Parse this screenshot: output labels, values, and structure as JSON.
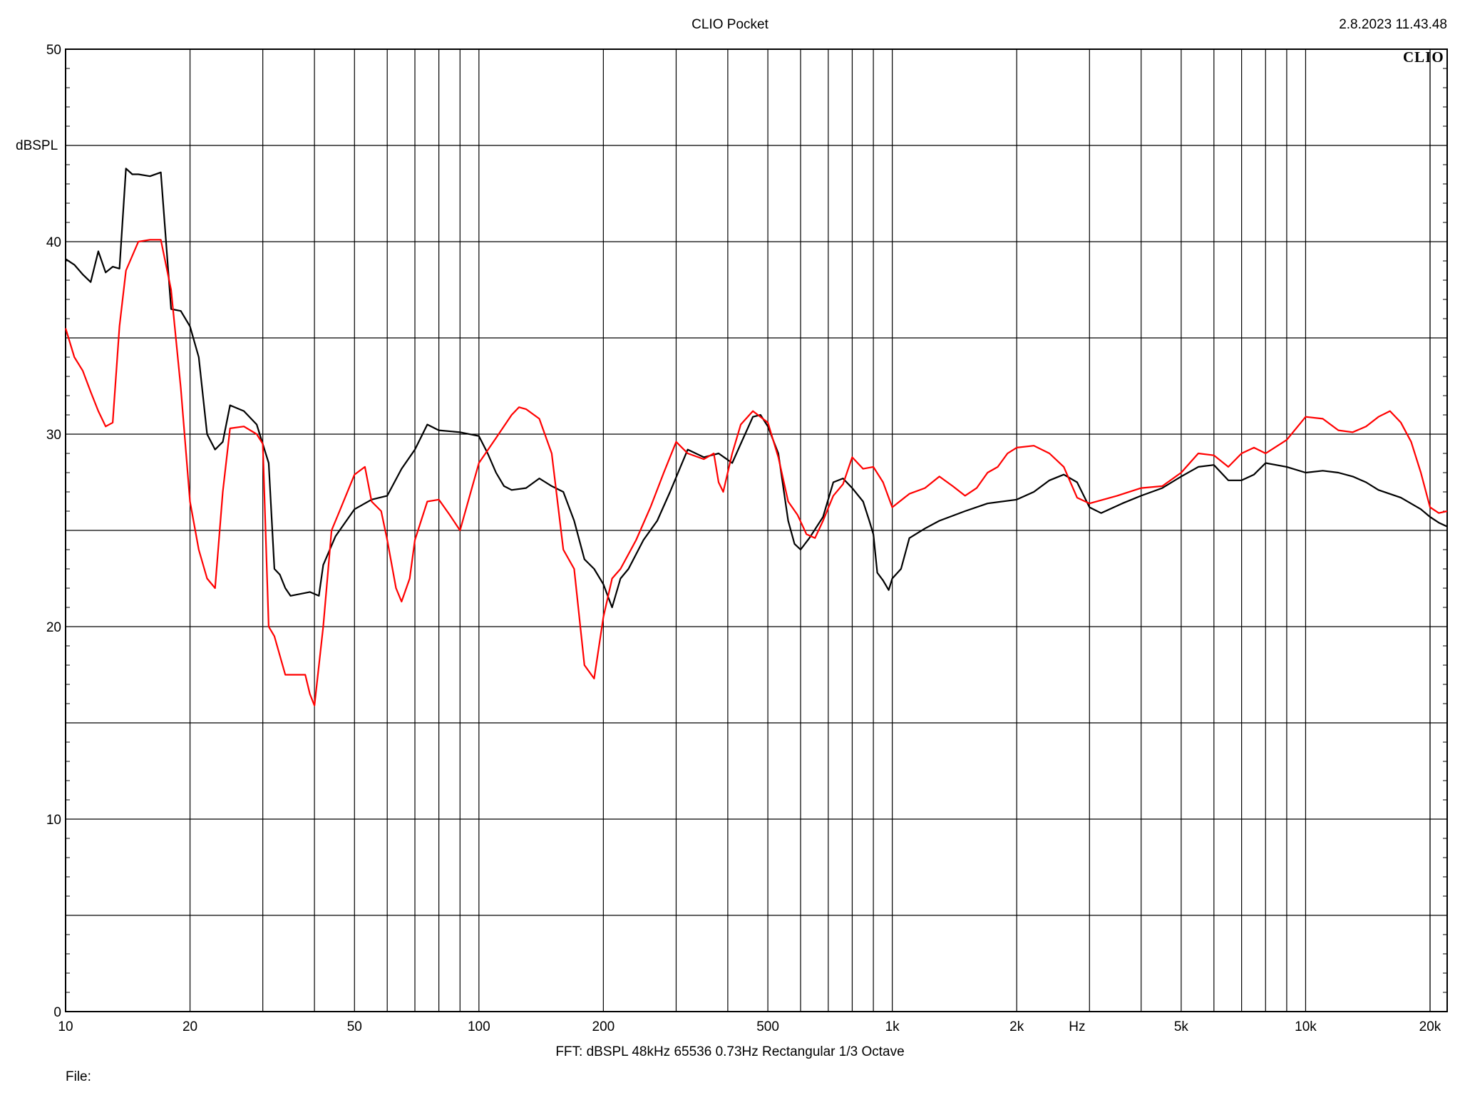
{
  "header": {
    "title": "CLIO Pocket",
    "timestamp": "2.8.2023 11.43.48",
    "logo": "CLIO"
  },
  "footer": {
    "info": "FFT:  dBSPL  48kHz   65536  0.73Hz  Rectangular  1/3 Octave",
    "file_label": "File:"
  },
  "chart_data": {
    "type": "line",
    "title": "CLIO Pocket",
    "xlabel": "Hz",
    "ylabel": "dBSPL",
    "x_scale": "log",
    "xlim": [
      10,
      22000
    ],
    "ylim": [
      0,
      50
    ],
    "grid": true,
    "y_ticks": [
      0,
      10,
      20,
      30,
      40,
      50
    ],
    "x_ticks": [
      {
        "value": 10,
        "label": "10"
      },
      {
        "value": 20,
        "label": "20"
      },
      {
        "value": 50,
        "label": "50"
      },
      {
        "value": 100,
        "label": "100"
      },
      {
        "value": 200,
        "label": "200"
      },
      {
        "value": 500,
        "label": "500"
      },
      {
        "value": 1000,
        "label": "1k"
      },
      {
        "value": 2000,
        "label": "2k"
      },
      {
        "value": 5000,
        "label": "5k"
      },
      {
        "value": 10000,
        "label": "10k"
      },
      {
        "value": 20000,
        "label": "20k"
      }
    ],
    "x_unit_label": {
      "value": 2800,
      "label": "Hz"
    },
    "series": [
      {
        "color": "#000000",
        "points": [
          [
            10,
            39.1
          ],
          [
            10.5,
            38.8
          ],
          [
            11,
            38.3
          ],
          [
            11.5,
            37.9
          ],
          [
            12,
            39.5
          ],
          [
            12.5,
            38.4
          ],
          [
            13,
            38.7
          ],
          [
            13.5,
            38.6
          ],
          [
            14,
            43.8
          ],
          [
            14.5,
            43.5
          ],
          [
            15,
            43.5
          ],
          [
            16,
            43.4
          ],
          [
            17,
            43.6
          ],
          [
            17.5,
            40
          ],
          [
            18,
            36.5
          ],
          [
            19,
            36.4
          ],
          [
            20,
            35.6
          ],
          [
            21,
            34
          ],
          [
            22,
            30
          ],
          [
            23,
            29.2
          ],
          [
            24,
            29.6
          ],
          [
            25,
            31.5
          ],
          [
            27,
            31.2
          ],
          [
            29,
            30.5
          ],
          [
            31,
            28.5
          ],
          [
            32,
            23
          ],
          [
            33,
            22.7
          ],
          [
            34,
            22
          ],
          [
            35,
            21.6
          ],
          [
            37,
            21.7
          ],
          [
            39,
            21.8
          ],
          [
            41,
            21.6
          ],
          [
            42,
            23.2
          ],
          [
            45,
            24.7
          ],
          [
            50,
            26.1
          ],
          [
            55,
            26.6
          ],
          [
            60,
            26.8
          ],
          [
            65,
            28.2
          ],
          [
            70,
            29.2
          ],
          [
            75,
            30.5
          ],
          [
            80,
            30.2
          ],
          [
            90,
            30.1
          ],
          [
            100,
            29.9
          ],
          [
            105,
            29
          ],
          [
            110,
            28
          ],
          [
            115,
            27.3
          ],
          [
            120,
            27.1
          ],
          [
            130,
            27.2
          ],
          [
            140,
            27.7
          ],
          [
            150,
            27.3
          ],
          [
            160,
            27
          ],
          [
            170,
            25.5
          ],
          [
            180,
            23.5
          ],
          [
            190,
            23
          ],
          [
            200,
            22.2
          ],
          [
            210,
            21
          ],
          [
            220,
            22.5
          ],
          [
            230,
            23
          ],
          [
            250,
            24.5
          ],
          [
            270,
            25.5
          ],
          [
            290,
            27
          ],
          [
            320,
            29.2
          ],
          [
            350,
            28.8
          ],
          [
            380,
            29
          ],
          [
            410,
            28.5
          ],
          [
            430,
            29.5
          ],
          [
            460,
            30.9
          ],
          [
            480,
            31
          ],
          [
            500,
            30.4
          ],
          [
            530,
            29
          ],
          [
            560,
            25.5
          ],
          [
            580,
            24.3
          ],
          [
            600,
            24
          ],
          [
            630,
            24.6
          ],
          [
            680,
            25.7
          ],
          [
            720,
            27.5
          ],
          [
            760,
            27.7
          ],
          [
            800,
            27.2
          ],
          [
            850,
            26.5
          ],
          [
            880,
            25.5
          ],
          [
            900,
            24.8
          ],
          [
            920,
            22.8
          ],
          [
            950,
            22.4
          ],
          [
            980,
            21.9
          ],
          [
            1000,
            22.5
          ],
          [
            1050,
            23
          ],
          [
            1100,
            24.6
          ],
          [
            1200,
            25.1
          ],
          [
            1300,
            25.5
          ],
          [
            1500,
            26
          ],
          [
            1700,
            26.4
          ],
          [
            2000,
            26.6
          ],
          [
            2200,
            27
          ],
          [
            2400,
            27.6
          ],
          [
            2600,
            27.9
          ],
          [
            2800,
            27.5
          ],
          [
            3000,
            26.2
          ],
          [
            3200,
            25.9
          ],
          [
            3600,
            26.4
          ],
          [
            4000,
            26.8
          ],
          [
            4500,
            27.2
          ],
          [
            5000,
            27.8
          ],
          [
            5500,
            28.3
          ],
          [
            6000,
            28.4
          ],
          [
            6500,
            27.6
          ],
          [
            7000,
            27.6
          ],
          [
            7500,
            27.9
          ],
          [
            8000,
            28.5
          ],
          [
            9000,
            28.3
          ],
          [
            10000,
            28
          ],
          [
            11000,
            28.1
          ],
          [
            12000,
            28
          ],
          [
            13000,
            27.8
          ],
          [
            14000,
            27.5
          ],
          [
            15000,
            27.1
          ],
          [
            17000,
            26.7
          ],
          [
            19000,
            26.1
          ],
          [
            20000,
            25.7
          ],
          [
            21000,
            25.4
          ],
          [
            22000,
            25.2
          ]
        ]
      },
      {
        "color": "#ff0000",
        "points": [
          [
            10,
            35.5
          ],
          [
            10.5,
            34
          ],
          [
            11,
            33.3
          ],
          [
            11.5,
            32.2
          ],
          [
            12,
            31.2
          ],
          [
            12.5,
            30.4
          ],
          [
            13,
            30.6
          ],
          [
            13.5,
            35.6
          ],
          [
            14,
            38.5
          ],
          [
            15,
            40
          ],
          [
            16,
            40.1
          ],
          [
            17,
            40.1
          ],
          [
            18,
            37.5
          ],
          [
            19,
            32.4
          ],
          [
            20,
            26.5
          ],
          [
            21,
            24
          ],
          [
            22,
            22.5
          ],
          [
            23,
            22
          ],
          [
            24,
            27
          ],
          [
            25,
            30.3
          ],
          [
            27,
            30.4
          ],
          [
            29,
            30
          ],
          [
            30,
            29.5
          ],
          [
            31,
            20
          ],
          [
            32,
            19.5
          ],
          [
            34,
            17.5
          ],
          [
            36,
            17.5
          ],
          [
            38,
            17.5
          ],
          [
            39,
            16.5
          ],
          [
            40,
            15.9
          ],
          [
            42,
            20
          ],
          [
            44,
            25
          ],
          [
            46,
            26
          ],
          [
            50,
            27.9
          ],
          [
            53,
            28.3
          ],
          [
            55,
            26.5
          ],
          [
            58,
            26
          ],
          [
            60,
            24.5
          ],
          [
            63,
            22
          ],
          [
            65,
            21.3
          ],
          [
            68,
            22.5
          ],
          [
            70,
            24.5
          ],
          [
            75,
            26.5
          ],
          [
            80,
            26.6
          ],
          [
            85,
            25.8
          ],
          [
            90,
            25
          ],
          [
            95,
            26.8
          ],
          [
            100,
            28.5
          ],
          [
            110,
            29.8
          ],
          [
            120,
            31
          ],
          [
            125,
            31.4
          ],
          [
            130,
            31.3
          ],
          [
            140,
            30.8
          ],
          [
            150,
            29
          ],
          [
            160,
            24
          ],
          [
            170,
            23
          ],
          [
            180,
            18
          ],
          [
            190,
            17.3
          ],
          [
            200,
            20.5
          ],
          [
            210,
            22.5
          ],
          [
            220,
            23
          ],
          [
            240,
            24.5
          ],
          [
            260,
            26.2
          ],
          [
            280,
            28
          ],
          [
            300,
            29.6
          ],
          [
            320,
            29
          ],
          [
            350,
            28.7
          ],
          [
            370,
            29
          ],
          [
            380,
            27.5
          ],
          [
            390,
            27
          ],
          [
            410,
            29
          ],
          [
            430,
            30.5
          ],
          [
            460,
            31.2
          ],
          [
            500,
            30.6
          ],
          [
            530,
            28.8
          ],
          [
            560,
            26.5
          ],
          [
            590,
            25.8
          ],
          [
            620,
            24.8
          ],
          [
            650,
            24.6
          ],
          [
            680,
            25.5
          ],
          [
            720,
            26.8
          ],
          [
            760,
            27.4
          ],
          [
            800,
            28.8
          ],
          [
            850,
            28.2
          ],
          [
            900,
            28.3
          ],
          [
            950,
            27.5
          ],
          [
            1000,
            26.2
          ],
          [
            1100,
            26.9
          ],
          [
            1200,
            27.2
          ],
          [
            1300,
            27.8
          ],
          [
            1400,
            27.3
          ],
          [
            1500,
            26.8
          ],
          [
            1600,
            27.2
          ],
          [
            1700,
            28
          ],
          [
            1800,
            28.3
          ],
          [
            1900,
            29
          ],
          [
            2000,
            29.3
          ],
          [
            2200,
            29.4
          ],
          [
            2400,
            29
          ],
          [
            2600,
            28.3
          ],
          [
            2800,
            26.7
          ],
          [
            3000,
            26.4
          ],
          [
            3500,
            26.8
          ],
          [
            4000,
            27.2
          ],
          [
            4500,
            27.3
          ],
          [
            5000,
            28
          ],
          [
            5500,
            29
          ],
          [
            6000,
            28.9
          ],
          [
            6500,
            28.3
          ],
          [
            7000,
            29
          ],
          [
            7500,
            29.3
          ],
          [
            8000,
            29
          ],
          [
            9000,
            29.7
          ],
          [
            10000,
            30.9
          ],
          [
            11000,
            30.8
          ],
          [
            12000,
            30.2
          ],
          [
            13000,
            30.1
          ],
          [
            14000,
            30.4
          ],
          [
            15000,
            30.9
          ],
          [
            16000,
            31.2
          ],
          [
            17000,
            30.6
          ],
          [
            18000,
            29.6
          ],
          [
            19000,
            28
          ],
          [
            20000,
            26.2
          ],
          [
            21000,
            25.9
          ],
          [
            22000,
            26
          ]
        ]
      }
    ]
  }
}
